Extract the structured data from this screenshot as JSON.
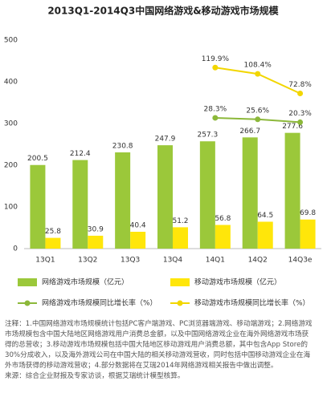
{
  "chart_data": {
    "type": "bar",
    "title": "2013Q1-2014Q3中国网络游戏&移动游戏市场规模",
    "categories": [
      "13Q1",
      "13Q2",
      "13Q3",
      "13Q4",
      "14Q1",
      "14Q2",
      "14Q3e"
    ],
    "series": [
      {
        "name": "网络游戏市场规模（亿元）",
        "color": "#9bc83a",
        "values": [
          200.5,
          212.4,
          230.8,
          247.9,
          257.3,
          266.7,
          277.6
        ]
      },
      {
        "name": "移动游戏市场规模（亿元）",
        "color": "#ffe60a",
        "values": [
          25.8,
          30.9,
          40.4,
          51.2,
          56.8,
          64.5,
          69.8
        ]
      },
      {
        "name": "网络游戏市场规模同比增长率（%）",
        "color": "#8cb83a",
        "axis": "y2",
        "type": "line",
        "values": [
          null,
          null,
          null,
          null,
          28.3,
          25.6,
          20.3
        ],
        "value_labels": [
          null,
          null,
          null,
          null,
          "28.3%",
          "25.6%",
          "20.3%"
        ]
      },
      {
        "name": "移动游戏市场规模同比增长率（%）",
        "color": "#f2d600",
        "axis": "y2",
        "type": "line",
        "values": [
          null,
          null,
          null,
          null,
          119.9,
          108.4,
          72.8
        ],
        "value_labels": [
          null,
          null,
          null,
          null,
          "119.9%",
          "108.4%",
          "72.8%"
        ]
      }
    ],
    "ylim": [
      0,
      500
    ],
    "yticks": [
      0,
      100,
      200,
      300,
      400,
      500
    ],
    "y2lim": [
      -210,
      170
    ],
    "grid": false
  },
  "notes": [
    "注释：1.中国网络游戏市场规模统计包括PC客户端游戏、PC浏览器端游戏、移动端游戏；2.网络游戏市场规模包含中国大陆地区网络游戏用户消费总金额，以及中国网络游戏企业在海外网络游戏市场获得的总营收；3.移动游戏市场规模包括中国大陆地区移动游戏用户消费总额，其中包含App Store的30%分成收入，以及海外游戏公司在中国大陆的相关移动游戏营收，同时包括中国移动游戏企业在海外市场获得的移动游戏营收；4.部分数据将在艾瑞2014年网络游戏相关报告中做出调整。",
    "来源：综合企业财报及专家访谈，根据艾瑞统计模型核算。"
  ]
}
